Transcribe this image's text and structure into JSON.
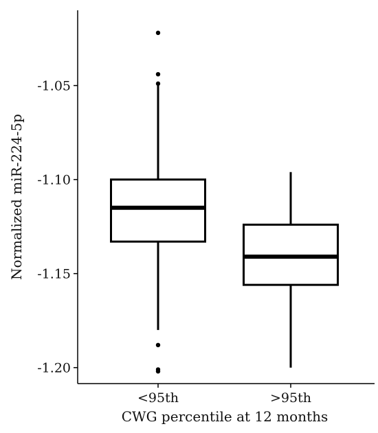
{
  "chart_data": {
    "type": "box",
    "title": "",
    "xlabel": "CWG percentile at 12 months",
    "ylabel": "Normalized miR-224-5p",
    "categories": [
      "<95th",
      ">95th"
    ],
    "ylim": [
      -1.2085,
      -1.01
    ],
    "yticks": [
      -1.05,
      -1.1,
      -1.15,
      -1.2
    ],
    "ytick_labels": [
      "-1.05",
      "-1.10",
      "-1.15",
      "-1.20"
    ],
    "grid": false,
    "legend": "none",
    "boxes": [
      {
        "category": "<95th",
        "whisker_high": -1.05,
        "q3": -1.1,
        "median": -1.115,
        "q1": -1.133,
        "whisker_low": -1.18,
        "outliers": [
          -1.022,
          -1.044,
          -1.049,
          -1.188,
          -1.201,
          -1.202
        ]
      },
      {
        "category": ">95th",
        "whisker_high": -1.096,
        "q3": -1.124,
        "median": -1.141,
        "q1": -1.156,
        "whisker_low": -1.2,
        "outliers": []
      }
    ],
    "colors": {
      "box_stroke": "#000000",
      "box_fill": "#ffffff",
      "axis": "#000000"
    }
  }
}
